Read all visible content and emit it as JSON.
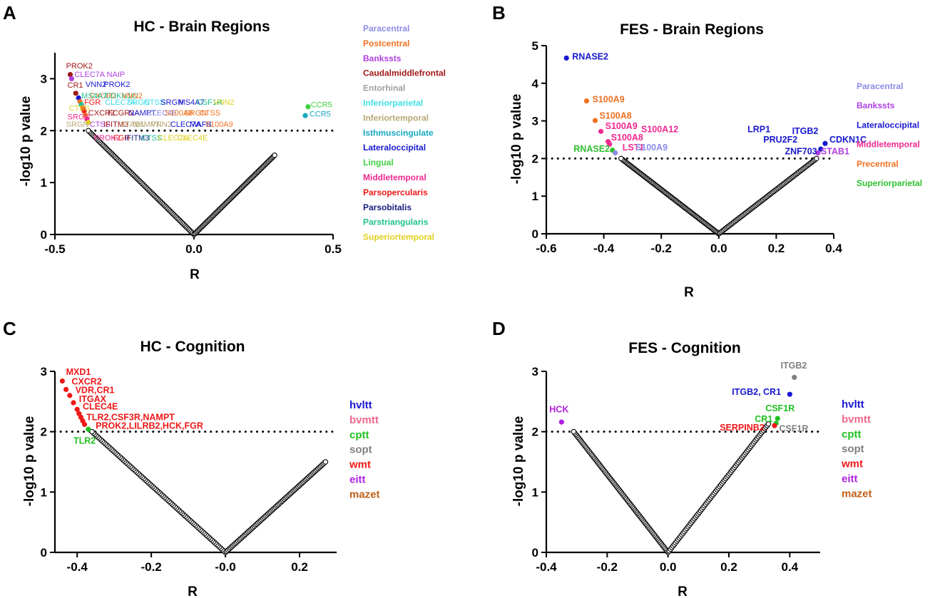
{
  "chart_data": [
    {
      "id": "A",
      "type": "scatter",
      "panel_letter": "A",
      "title": "HC - Brain Regions",
      "xlabel": "R",
      "ylabel": "-log10 p value",
      "xlim": [
        -0.5,
        0.5
      ],
      "ylim": [
        0,
        3.5
      ],
      "xticks": [
        -0.5,
        0.0,
        0.5
      ],
      "xtick_labels": [
        "-0.5",
        "0.0",
        "0.5"
      ],
      "yticks": [
        0,
        1,
        2,
        3
      ],
      "ytick_labels": [
        "0",
        "1",
        "2",
        "3"
      ],
      "threshold": 2,
      "curve": {
        "neg_extent": -0.38,
        "pos_extent": 0.29
      },
      "legend_style": "small",
      "legend": [
        {
          "label": "Paracentral",
          "color": "#8C8CE8"
        },
        {
          "label": "Postcentral",
          "color": "#F07020"
        },
        {
          "label": "Bankssts",
          "color": "#B040E0"
        },
        {
          "label": "Caudalmiddlefrontal",
          "color": "#A01818"
        },
        {
          "label": "Entorhinal",
          "color": "#A0A0A0"
        },
        {
          "label": "Inferiorparietal",
          "color": "#40E0E8"
        },
        {
          "label": "Inferiortemporal",
          "color": "#B8A878"
        },
        {
          "label": "Isthmuscingulate",
          "color": "#18A8C0"
        },
        {
          "label": "Lateraloccipital",
          "color": "#1818D0"
        },
        {
          "label": "Lingual",
          "color": "#40D040"
        },
        {
          "label": "Middletemporal",
          "color": "#F02890"
        },
        {
          "label": "Parsopercularis",
          "color": "#F01818"
        },
        {
          "label": "Parsobitalis",
          "color": "#182080"
        },
        {
          "label": "Parstriangularis",
          "color": "#20C090"
        },
        {
          "label": "Superiortemporal",
          "color": "#E0D020"
        }
      ],
      "points": [
        {
          "x": -0.445,
          "y": 3.08,
          "color": "#A01818"
        },
        {
          "x": -0.44,
          "y": 3.0,
          "color": "#B040E0"
        },
        {
          "x": -0.425,
          "y": 2.72,
          "color": "#A01818"
        },
        {
          "x": -0.415,
          "y": 2.63,
          "color": "#1818D0"
        },
        {
          "x": -0.41,
          "y": 2.56,
          "color": "#F07020"
        },
        {
          "x": -0.405,
          "y": 2.5,
          "color": "#20C090"
        },
        {
          "x": -0.4,
          "y": 2.44,
          "color": "#F07020"
        },
        {
          "x": -0.395,
          "y": 2.38,
          "color": "#F01818"
        },
        {
          "x": -0.39,
          "y": 2.3,
          "color": "#F07020"
        },
        {
          "x": -0.385,
          "y": 2.22,
          "color": "#F02890"
        },
        {
          "x": -0.38,
          "y": 2.16,
          "color": "#E0D020"
        },
        {
          "x": 0.41,
          "y": 2.46,
          "color": "#40D040"
        },
        {
          "x": 0.4,
          "y": 2.29,
          "color": "#18A8C0"
        }
      ],
      "labels": [
        {
          "text": "PROK2",
          "x": -0.46,
          "y": 3.2,
          "color": "#A01818"
        },
        {
          "text": "CLEC7A NAIP",
          "x": -0.43,
          "y": 3.03,
          "color": "#B040E0"
        },
        {
          "text": "CR1",
          "x": -0.455,
          "y": 2.83,
          "color": "#A01818"
        },
        {
          "text": "VNN2",
          "x": -0.39,
          "y": 2.84,
          "color": "#1818D0"
        },
        {
          "text": "PROK2",
          "x": -0.325,
          "y": 2.84,
          "color": "#1818D0"
        },
        {
          "text": "CXCR2",
          "x": -0.375,
          "y": 2.62,
          "color": "#F07020"
        },
        {
          "text": "MS4A7",
          "x": -0.405,
          "y": 2.62,
          "color": "#20C090"
        },
        {
          "text": "CDKN1C",
          "x": -0.32,
          "y": 2.62,
          "color": "#20C090"
        },
        {
          "text": "VNN2",
          "x": -0.26,
          "y": 2.62,
          "color": "#F07020"
        },
        {
          "text": "CTSS",
          "x": -0.45,
          "y": 2.38,
          "color": "#E0D020"
        },
        {
          "text": "FGR",
          "x": -0.395,
          "y": 2.5,
          "color": "#F01818"
        },
        {
          "text": "CLEC7A",
          "x": -0.32,
          "y": 2.5,
          "color": "#40E0E8"
        },
        {
          "text": "SRGN",
          "x": -0.24,
          "y": 2.5,
          "color": "#40E0E8"
        },
        {
          "text": "CTSS",
          "x": -0.18,
          "y": 2.5,
          "color": "#40E0E8"
        },
        {
          "text": "SRGN",
          "x": -0.12,
          "y": 2.5,
          "color": "#1818D0"
        },
        {
          "text": "MS4A7",
          "x": -0.055,
          "y": 2.5,
          "color": "#1818D0"
        },
        {
          "text": "CSF1R",
          "x": 0.01,
          "y": 2.5,
          "color": "#20C090"
        },
        {
          "text": "VNN2",
          "x": 0.07,
          "y": 2.5,
          "color": "#E0D020"
        },
        {
          "text": "CCR5",
          "x": 0.42,
          "y": 2.45,
          "color": "#40D040"
        },
        {
          "text": "CCR5",
          "x": 0.415,
          "y": 2.27,
          "color": "#18A8C0"
        },
        {
          "text": "SRGN",
          "x": -0.455,
          "y": 2.22,
          "color": "#F02890"
        },
        {
          "text": "CXCR2",
          "x": -0.38,
          "y": 2.29,
          "color": "#A01818"
        },
        {
          "text": "FCGR2A",
          "x": -0.31,
          "y": 2.29,
          "color": "#A01818"
        },
        {
          "text": "NAMPT",
          "x": -0.235,
          "y": 2.29,
          "color": "#1818D0"
        },
        {
          "text": "CLEC4E",
          "x": -0.17,
          "y": 2.29,
          "color": "#8C8CE8"
        },
        {
          "text": "S100A8",
          "x": -0.105,
          "y": 2.29,
          "color": "#F07020"
        },
        {
          "text": "SRGN",
          "x": -0.035,
          "y": 2.29,
          "color": "#F07020"
        },
        {
          "text": "CTSS",
          "x": 0.02,
          "y": 2.29,
          "color": "#F07020"
        },
        {
          "text": "SRGN",
          "x": -0.46,
          "y": 2.07,
          "color": "#B8A878"
        },
        {
          "text": "CTSS",
          "x": -0.375,
          "y": 2.07,
          "color": "#B040E0"
        },
        {
          "text": "IFITM3",
          "x": -0.325,
          "y": 2.07,
          "color": "#A01818"
        },
        {
          "text": "STAB1",
          "x": -0.265,
          "y": 2.07,
          "color": "#B8A878"
        },
        {
          "text": "NAMPT",
          "x": -0.22,
          "y": 2.07,
          "color": "#B8A878"
        },
        {
          "text": "VNN2",
          "x": -0.155,
          "y": 2.07,
          "color": "#B8A878"
        },
        {
          "text": "CLEC7A",
          "x": -0.085,
          "y": 2.07,
          "color": "#1818D0"
        },
        {
          "text": "MAFB",
          "x": -0.015,
          "y": 2.07,
          "color": "#1818D0"
        },
        {
          "text": "S100A9",
          "x": 0.04,
          "y": 2.07,
          "color": "#F07020"
        },
        {
          "text": "PROK2",
          "x": -0.36,
          "y": 1.81,
          "color": "#F02890"
        },
        {
          "text": "FGR",
          "x": -0.29,
          "y": 1.81,
          "color": "#F01818"
        },
        {
          "text": "IFITM3",
          "x": -0.25,
          "y": 1.81,
          "color": "#182080"
        },
        {
          "text": "CTSS",
          "x": -0.19,
          "y": 1.81,
          "color": "#20C090"
        },
        {
          "text": "CLEC7A",
          "x": -0.13,
          "y": 1.81,
          "color": "#E0D020"
        },
        {
          "text": "CLEC4E",
          "x": -0.06,
          "y": 1.81,
          "color": "#E0D020"
        }
      ]
    },
    {
      "id": "B",
      "type": "scatter",
      "panel_letter": "B",
      "title": "FES - Brain Regions",
      "xlabel": "R",
      "ylabel": "-log10 p value",
      "xlim": [
        -0.6,
        0.4
      ],
      "ylim": [
        0,
        5
      ],
      "xticks": [
        -0.6,
        -0.4,
        -0.2,
        0.0,
        0.2,
        0.4
      ],
      "xtick_labels": [
        "-0.6",
        "-0.4",
        "-0.2",
        "0.0",
        "0.2",
        "0.4"
      ],
      "yticks": [
        0,
        1,
        2,
        3,
        4,
        5
      ],
      "ytick_labels": [
        "0",
        "1",
        "2",
        "3",
        "4",
        "5"
      ],
      "threshold": 2,
      "curve": {
        "neg_extent": -0.34,
        "pos_extent": 0.34
      },
      "legend_style": "small",
      "legend": [
        {
          "label": "Paracentral",
          "color": "#8C8CE8"
        },
        {
          "label": "Bankssts",
          "color": "#B040E0"
        },
        {
          "label": "Lateraloccipital",
          "color": "#1818D0"
        },
        {
          "label": "Middletemporal",
          "color": "#F02890"
        },
        {
          "label": "Precentral",
          "color": "#F07020"
        },
        {
          "label": "Superiorparietal",
          "color": "#30C030"
        }
      ],
      "points": [
        {
          "x": -0.53,
          "y": 4.67,
          "color": "#1818D0"
        },
        {
          "x": -0.46,
          "y": 3.53,
          "color": "#F07020"
        },
        {
          "x": -0.43,
          "y": 3.01,
          "color": "#F07020"
        },
        {
          "x": -0.41,
          "y": 2.72,
          "color": "#F02890"
        },
        {
          "x": -0.385,
          "y": 2.45,
          "color": "#F02890"
        },
        {
          "x": -0.38,
          "y": 2.38,
          "color": "#F02890"
        },
        {
          "x": -0.37,
          "y": 2.22,
          "color": "#30C030"
        },
        {
          "x": -0.36,
          "y": 2.15,
          "color": "#8C8CE8"
        },
        {
          "x": 0.37,
          "y": 2.4,
          "color": "#1818D0"
        },
        {
          "x": 0.355,
          "y": 2.25,
          "color": "#1818D0"
        },
        {
          "x": 0.345,
          "y": 2.15,
          "color": "#B040E0"
        }
      ],
      "labels": [
        {
          "text": "RNASE2",
          "x": -0.51,
          "y": 4.63,
          "color": "#1818D0"
        },
        {
          "text": "S100A9",
          "x": -0.44,
          "y": 3.49,
          "color": "#F07020"
        },
        {
          "text": "S100A8",
          "x": -0.415,
          "y": 3.06,
          "color": "#F07020"
        },
        {
          "text": "S100A9",
          "x": -0.395,
          "y": 2.78,
          "color": "#F02890"
        },
        {
          "text": "S100A12",
          "x": -0.27,
          "y": 2.7,
          "color": "#F02890"
        },
        {
          "text": "S100A8",
          "x": -0.375,
          "y": 2.48,
          "color": "#F02890"
        },
        {
          "text": "RNASE2",
          "x": -0.505,
          "y": 2.18,
          "color": "#30C030"
        },
        {
          "text": "LST1",
          "x": -0.335,
          "y": 2.22,
          "color": "#F02890"
        },
        {
          "text": "S100A9",
          "x": -0.29,
          "y": 2.22,
          "color": "#8C8CE8"
        },
        {
          "text": "LRP1",
          "x": 0.1,
          "y": 2.7,
          "color": "#1818D0"
        },
        {
          "text": "ITGB2",
          "x": 0.255,
          "y": 2.65,
          "color": "#1818D0"
        },
        {
          "text": "PRU2F2",
          "x": 0.155,
          "y": 2.42,
          "color": "#1818D0"
        },
        {
          "text": "CDKN1C",
          "x": 0.385,
          "y": 2.42,
          "color": "#1818D0"
        },
        {
          "text": "ZNF703",
          "x": 0.23,
          "y": 2.11,
          "color": "#1818D0"
        },
        {
          "text": "STAB1",
          "x": 0.355,
          "y": 2.11,
          "color": "#B040E0"
        }
      ]
    },
    {
      "id": "C",
      "type": "scatter",
      "panel_letter": "C",
      "title": "HC - Cognition",
      "xlabel": "R",
      "ylabel": "-log10 p value",
      "xlim": [
        -0.46,
        0.3
      ],
      "ylim": [
        0,
        3
      ],
      "xticks": [
        -0.4,
        -0.2,
        0.0,
        0.2
      ],
      "xtick_labels": [
        "-0.4",
        "-0.2",
        "-0.0",
        "0.2"
      ],
      "yticks": [
        0,
        1,
        2,
        3
      ],
      "ytick_labels": [
        "0",
        "1",
        "2",
        "3"
      ],
      "threshold": 2,
      "curve": {
        "neg_extent": -0.36,
        "pos_extent": 0.27
      },
      "legend_style": "large",
      "legend": [
        {
          "label": "hvltt",
          "color": "#1818D0"
        },
        {
          "label": "bvmtt",
          "color": "#F06890"
        },
        {
          "label": "cptt",
          "color": "#20C020"
        },
        {
          "label": "sopt",
          "color": "#808080"
        },
        {
          "label": "wmt",
          "color": "#F01818"
        },
        {
          "label": "eitt",
          "color": "#B020E0"
        },
        {
          "label": "mazet",
          "color": "#C06018"
        }
      ],
      "points": [
        {
          "x": -0.44,
          "y": 2.84,
          "color": "#F01818"
        },
        {
          "x": -0.43,
          "y": 2.7,
          "color": "#F01818"
        },
        {
          "x": -0.42,
          "y": 2.6,
          "color": "#F01818"
        },
        {
          "x": -0.41,
          "y": 2.48,
          "color": "#F01818"
        },
        {
          "x": -0.4,
          "y": 2.37,
          "color": "#F01818"
        },
        {
          "x": -0.395,
          "y": 2.3,
          "color": "#F01818"
        },
        {
          "x": -0.39,
          "y": 2.24,
          "color": "#F01818"
        },
        {
          "x": -0.385,
          "y": 2.18,
          "color": "#F01818"
        },
        {
          "x": -0.38,
          "y": 2.12,
          "color": "#F01818"
        },
        {
          "x": -0.37,
          "y": 2.04,
          "color": "#20C020"
        }
      ],
      "labels": [
        {
          "text": "MXD1",
          "x": -0.43,
          "y": 2.94,
          "color": "#F01818"
        },
        {
          "text": "CXCR2",
          "x": -0.415,
          "y": 2.78,
          "color": "#F01818"
        },
        {
          "text": "VDR,CR1",
          "x": -0.405,
          "y": 2.64,
          "color": "#F01818"
        },
        {
          "text": "ITGAX",
          "x": -0.395,
          "y": 2.49,
          "color": "#F01818"
        },
        {
          "text": "CLEC4E",
          "x": -0.385,
          "y": 2.37,
          "color": "#F01818"
        },
        {
          "text": "TLR2,CSF3R,NAMPT",
          "x": -0.375,
          "y": 2.19,
          "color": "#F01818"
        },
        {
          "text": "PROK2,LILRB2,HCK,FGR",
          "x": -0.35,
          "y": 2.05,
          "color": "#F01818"
        },
        {
          "text": "TLR2",
          "x": -0.41,
          "y": 1.8,
          "color": "#20C020"
        }
      ]
    },
    {
      "id": "D",
      "type": "scatter",
      "panel_letter": "D",
      "title": "FES - Cognition",
      "xlabel": "R",
      "ylabel": "-log10 p value",
      "xlim": [
        -0.4,
        0.5
      ],
      "ylim": [
        0,
        3
      ],
      "xticks": [
        -0.4,
        -0.2,
        0.0,
        0.2,
        0.4
      ],
      "xtick_labels": [
        "-0.4",
        "-0.2",
        "0.0",
        "0.2",
        "0.4"
      ],
      "yticks": [
        0,
        1,
        2,
        3
      ],
      "ytick_labels": [
        "0",
        "1",
        "2",
        "3"
      ],
      "threshold": 2,
      "curve": {
        "neg_extent": -0.31,
        "pos_extent": 0.33
      },
      "legend_style": "large",
      "legend": [
        {
          "label": "hvltt",
          "color": "#1818D0"
        },
        {
          "label": "bvmtt",
          "color": "#F06890"
        },
        {
          "label": "cptt",
          "color": "#20C020"
        },
        {
          "label": "sopt",
          "color": "#808080"
        },
        {
          "label": "wmt",
          "color": "#F01818"
        },
        {
          "label": "eitt",
          "color": "#B020E0"
        },
        {
          "label": "mazet",
          "color": "#C06018"
        }
      ],
      "points": [
        {
          "x": 0.415,
          "y": 2.9,
          "color": "#808080"
        },
        {
          "x": 0.4,
          "y": 2.62,
          "color": "#1818D0"
        },
        {
          "x": 0.36,
          "y": 2.22,
          "color": "#20C020"
        },
        {
          "x": 0.355,
          "y": 2.14,
          "color": "#20C020"
        },
        {
          "x": 0.35,
          "y": 2.1,
          "color": "#F01818"
        },
        {
          "x": -0.35,
          "y": 2.16,
          "color": "#B020E0"
        }
      ],
      "labels": [
        {
          "text": "ITGB2",
          "x": 0.37,
          "y": 3.05,
          "color": "#808080"
        },
        {
          "text": "ITGB2, CR1",
          "x": 0.21,
          "y": 2.61,
          "color": "#1818D0"
        },
        {
          "text": "CSF1R",
          "x": 0.32,
          "y": 2.34,
          "color": "#20C020"
        },
        {
          "text": "CR1",
          "x": 0.285,
          "y": 2.16,
          "color": "#20C020"
        },
        {
          "text": "SERPINB2",
          "x": 0.17,
          "y": 2.02,
          "color": "#F01818"
        },
        {
          "text": "CSF1R",
          "x": 0.365,
          "y": 2.0,
          "color": "#808080"
        },
        {
          "text": "HCK",
          "x": -0.39,
          "y": 2.32,
          "color": "#B020E0"
        }
      ]
    }
  ]
}
